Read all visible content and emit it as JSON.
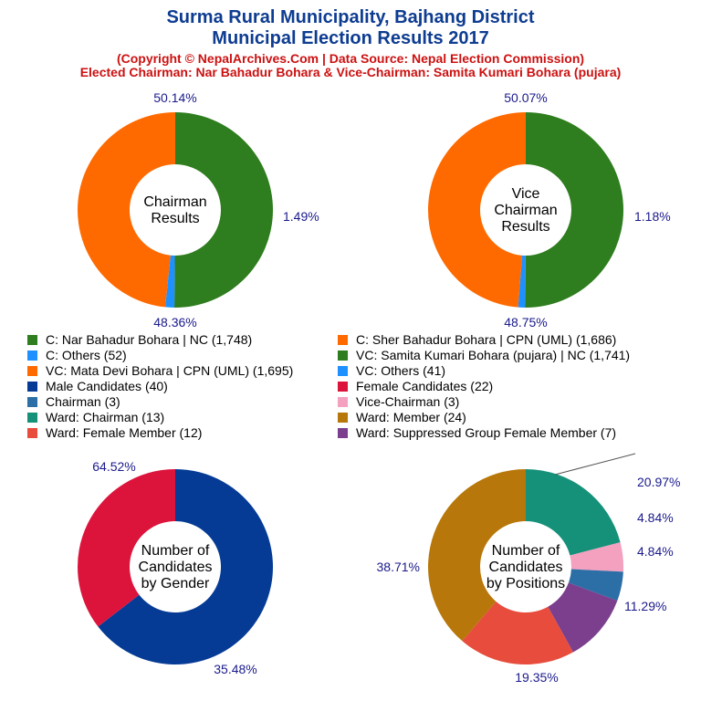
{
  "header": {
    "title_line1": "Surma Rural Municipality, Bajhang District",
    "title_line2": "Municipal Election Results 2017",
    "subtitle_line1": "(Copyright © NepalArchives.Com | Data Source: Nepal Election Commission)",
    "subtitle_line2": "Elected Chairman: Nar Bahadur Bohara & Vice-Chairman: Samita Kumari Bohara (pujara)"
  },
  "legend_left": [
    {
      "label": "C: Nar Bahadur Bohara | NC (1,748)",
      "color": "#2e7d1e"
    },
    {
      "label": "C: Others (52)",
      "color": "#1e90ff"
    },
    {
      "label": "VC: Mata Devi Bohara | CPN (UML) (1,695)",
      "color": "#ff6a00"
    },
    {
      "label": "Male Candidates (40)",
      "color": "#053b95"
    },
    {
      "label": "Chairman (3)",
      "color": "#2b6fa6"
    },
    {
      "label": "Ward: Chairman (13)",
      "color": "#15917a"
    },
    {
      "label": "Ward: Female Member (12)",
      "color": "#e74c3c"
    }
  ],
  "legend_right": [
    {
      "label": "C: Sher Bahadur Bohara | CPN (UML) (1,686)",
      "color": "#ff6a00"
    },
    {
      "label": "VC: Samita Kumari Bohara (pujara) | NC (1,741)",
      "color": "#2e7d1e"
    },
    {
      "label": "VC: Others (41)",
      "color": "#1e90ff"
    },
    {
      "label": "Female Candidates (22)",
      "color": "#dc143c"
    },
    {
      "label": "Vice-Chairman (3)",
      "color": "#f4a0bf"
    },
    {
      "label": "Ward: Member (24)",
      "color": "#b8770a"
    },
    {
      "label": "Ward: Suppressed Group Female Member (7)",
      "color": "#7b3f8e"
    }
  ],
  "chart_data": [
    {
      "type": "pie",
      "center_label": [
        "Chairman",
        "Results"
      ],
      "slices": [
        {
          "label": "C: Nar Bahadur Bohara | NC",
          "value": 1748,
          "pct_label": "50.14%",
          "color": "#2e7d1e"
        },
        {
          "label": "C: Others",
          "value": 52,
          "pct_label": "1.49%",
          "color": "#1e90ff"
        },
        {
          "label": "C: Sher Bahadur Bohara | CPN (UML)",
          "value": 1686,
          "pct_label": "48.36%",
          "color": "#ff6a00"
        }
      ]
    },
    {
      "type": "pie",
      "center_label": [
        "Vice",
        "Chairman",
        "Results"
      ],
      "slices": [
        {
          "label": "VC: Samita Kumari Bohara (pujara) | NC",
          "value": 1741,
          "pct_label": "50.07%",
          "color": "#2e7d1e"
        },
        {
          "label": "VC: Others",
          "value": 41,
          "pct_label": "1.18%",
          "color": "#1e90ff"
        },
        {
          "label": "VC: Mata Devi Bohara | CPN (UML)",
          "value": 1695,
          "pct_label": "48.75%",
          "color": "#ff6a00"
        }
      ]
    },
    {
      "type": "pie",
      "center_label": [
        "Number of",
        "Candidates",
        "by Gender"
      ],
      "slices": [
        {
          "label": "Male Candidates",
          "value": 40,
          "pct_label": "64.52%",
          "color": "#053b95"
        },
        {
          "label": "Female Candidates",
          "value": 22,
          "pct_label": "35.48%",
          "color": "#dc143c"
        }
      ]
    },
    {
      "type": "pie",
      "center_label": [
        "Number of",
        "Candidates",
        "by Positions"
      ],
      "slices": [
        {
          "label": "Ward: Chairman",
          "value": 13,
          "pct_label": "20.97%",
          "color": "#15917a"
        },
        {
          "label": "Vice-Chairman",
          "value": 3,
          "pct_label": "4.84%",
          "color": "#f4a0bf"
        },
        {
          "label": "Chairman",
          "value": 3,
          "pct_label": "4.84%",
          "color": "#2b6fa6"
        },
        {
          "label": "Ward: Suppressed Group Female Member",
          "value": 7,
          "pct_label": "11.29%",
          "color": "#7b3f8e"
        },
        {
          "label": "Ward: Female Member",
          "value": 12,
          "pct_label": "19.35%",
          "color": "#e74c3c"
        },
        {
          "label": "Ward: Member",
          "value": 24,
          "pct_label": "38.71%",
          "color": "#b8770a"
        }
      ]
    }
  ]
}
